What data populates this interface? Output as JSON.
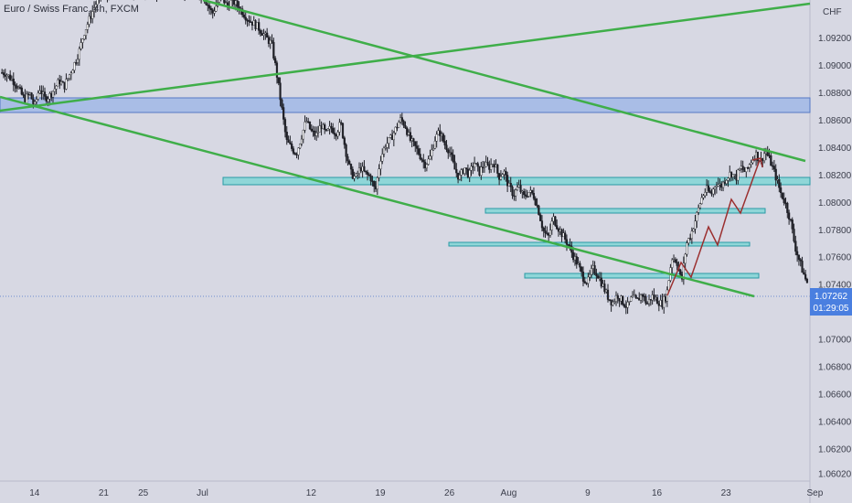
{
  "chart_data": {
    "type": "candlestick",
    "title": "Euro / Swiss Franc, 4h, FXCM",
    "currency_label": "CHF",
    "y_ticks": [
      "1.09200",
      "1.09000",
      "1.08800",
      "1.08600",
      "1.08400",
      "1.08200",
      "1.08000",
      "1.07800",
      "1.07600",
      "1.07400",
      "1.07200",
      "1.07000",
      "1.06800",
      "1.06600",
      "1.06400",
      "1.06200",
      "1.06020"
    ],
    "y_tick_values": [
      1.092,
      1.09,
      1.088,
      1.086,
      1.084,
      1.082,
      1.08,
      1.078,
      1.076,
      1.074,
      1.072,
      1.07,
      1.068,
      1.066,
      1.064,
      1.062,
      1.0602
    ],
    "x_ticks": [
      "14",
      "21",
      "25",
      "Jul",
      "12",
      "19",
      "26",
      "Aug",
      "9",
      "16",
      "23",
      "Sep"
    ],
    "x_tick_days": [
      -17,
      -10,
      -6,
      0,
      11,
      18,
      25,
      31,
      39,
      46,
      53,
      62
    ],
    "ylim": [
      1.0597,
      1.0948
    ],
    "xlim": [
      -20.5,
      61.5
    ],
    "current_price": {
      "value": 1.07262,
      "price_text": "1.07262",
      "countdown": "01:29:05"
    },
    "price_path": [
      [
        -20,
        1.0895
      ],
      [
        -19,
        1.0888
      ],
      [
        -18,
        1.0875
      ],
      [
        -17.5,
        1.088
      ],
      [
        -17,
        1.087
      ],
      [
        -16.5,
        1.0884
      ],
      [
        -16,
        1.0876
      ],
      [
        -15.5,
        1.0878
      ],
      [
        -15,
        1.0883
      ],
      [
        -14.5,
        1.0889
      ],
      [
        -14,
        1.0885
      ],
      [
        -13.5,
        1.0893
      ],
      [
        -13,
        1.0901
      ],
      [
        -12.5,
        1.091
      ],
      [
        -12,
        1.0924
      ],
      [
        -11.5,
        1.0933
      ],
      [
        -11,
        1.0942
      ],
      [
        -10.5,
        1.095
      ],
      [
        -10,
        1.0955
      ],
      [
        -9.5,
        1.095
      ],
      [
        -9,
        1.0952
      ],
      [
        -8.5,
        1.0956
      ],
      [
        -8,
        1.0953
      ],
      [
        -7.5,
        1.0957
      ],
      [
        -7,
        1.0954
      ],
      [
        -6.5,
        1.0958
      ],
      [
        -6,
        1.0955
      ],
      [
        -5.5,
        1.0958
      ],
      [
        -5,
        1.0956
      ],
      [
        -4.5,
        1.0952
      ],
      [
        -4,
        1.0956
      ],
      [
        -3.5,
        1.0958
      ],
      [
        -3,
        1.0955
      ],
      [
        -2.5,
        1.0957
      ],
      [
        -2,
        1.0954
      ],
      [
        -1.5,
        1.0956
      ],
      [
        -1,
        1.0955
      ],
      [
        0,
        1.0952
      ],
      [
        0.5,
        1.0945
      ],
      [
        1,
        1.0938
      ],
      [
        1.5,
        1.0946
      ],
      [
        2,
        1.095
      ],
      [
        2.5,
        1.0943
      ],
      [
        3,
        1.0948
      ],
      [
        3.5,
        1.0944
      ],
      [
        4,
        1.094
      ],
      [
        4.5,
        1.0935
      ],
      [
        5,
        1.0932
      ],
      [
        5.5,
        1.0929
      ],
      [
        6,
        1.0925
      ],
      [
        6.5,
        1.092
      ],
      [
        7,
        1.0916
      ],
      [
        7.5,
        1.0895
      ],
      [
        8,
        1.087
      ],
      [
        8.5,
        1.0845
      ],
      [
        9,
        1.084
      ],
      [
        9.5,
        1.0836
      ],
      [
        10,
        1.0848
      ],
      [
        10.5,
        1.086
      ],
      [
        11,
        1.0852
      ],
      [
        11.5,
        1.0849
      ],
      [
        12,
        1.0857
      ],
      [
        12.5,
        1.085
      ],
      [
        13,
        1.0855
      ],
      [
        13.5,
        1.0851
      ],
      [
        14,
        1.0858
      ],
      [
        14.5,
        1.0838
      ],
      [
        15,
        1.0822
      ],
      [
        15.5,
        1.0818
      ],
      [
        16,
        1.0826
      ],
      [
        16.5,
        1.0821
      ],
      [
        17,
        1.0819
      ],
      [
        17.5,
        1.0808
      ],
      [
        18,
        1.0832
      ],
      [
        18.5,
        1.0842
      ],
      [
        19,
        1.0846
      ],
      [
        19.5,
        1.0853
      ],
      [
        20,
        1.0861
      ],
      [
        20.5,
        1.0857
      ],
      [
        21,
        1.0846
      ],
      [
        21.5,
        1.0841
      ],
      [
        22,
        1.0835
      ],
      [
        22.5,
        1.0828
      ],
      [
        23,
        1.0832
      ],
      [
        23.5,
        1.0846
      ],
      [
        24,
        1.0852
      ],
      [
        24.5,
        1.0843
      ],
      [
        25,
        1.0838
      ],
      [
        25.5,
        1.0825
      ],
      [
        26,
        1.0818
      ],
      [
        26.5,
        1.0826
      ],
      [
        27,
        1.082
      ],
      [
        27.5,
        1.083
      ],
      [
        28,
        1.0822
      ],
      [
        28.5,
        1.0828
      ],
      [
        29,
        1.0826
      ],
      [
        29.5,
        1.083
      ],
      [
        30,
        1.0819
      ],
      [
        30.5,
        1.0823
      ],
      [
        31,
        1.0812
      ],
      [
        31.5,
        1.0806
      ],
      [
        32,
        1.0812
      ],
      [
        32.5,
        1.0804
      ],
      [
        33,
        1.0808
      ],
      [
        33.5,
        1.0806
      ],
      [
        34,
        1.0795
      ],
      [
        34.5,
        1.078
      ],
      [
        35,
        1.0774
      ],
      [
        35.5,
        1.0789
      ],
      [
        36,
        1.0782
      ],
      [
        36.5,
        1.0776
      ],
      [
        37,
        1.077
      ],
      [
        37.5,
        1.0762
      ],
      [
        38,
        1.0755
      ],
      [
        38.5,
        1.0746
      ],
      [
        39,
        1.0742
      ],
      [
        39.5,
        1.0752
      ],
      [
        40,
        1.0748
      ],
      [
        40.5,
        1.074
      ],
      [
        41,
        1.0732
      ],
      [
        41.5,
        1.0727
      ],
      [
        42,
        1.0733
      ],
      [
        42.5,
        1.0728
      ],
      [
        43,
        1.0724
      ],
      [
        43.5,
        1.0731
      ],
      [
        44,
        1.0728
      ],
      [
        44.5,
        1.0734
      ],
      [
        45,
        1.0726
      ],
      [
        45.5,
        1.0732
      ],
      [
        46,
        1.0729
      ],
      [
        46.5,
        1.0726
      ],
      [
        47,
        1.0733
      ],
      [
        47.5,
        1.076
      ],
      [
        48,
        1.0758
      ],
      [
        48.5,
        1.0742
      ],
      [
        49,
        1.077
      ],
      [
        49.5,
        1.0778
      ],
      [
        50,
        1.079
      ],
      [
        50.5,
        1.0803
      ],
      [
        51,
        1.081
      ],
      [
        51.5,
        1.0806
      ],
      [
        52,
        1.0815
      ],
      [
        52.5,
        1.0812
      ],
      [
        53,
        1.0818
      ],
      [
        53.5,
        1.0822
      ],
      [
        54,
        1.0818
      ],
      [
        54.5,
        1.0826
      ],
      [
        55,
        1.0822
      ],
      [
        55.5,
        1.083
      ],
      [
        56,
        1.0836
      ],
      [
        56.5,
        1.083
      ],
      [
        57,
        1.0838
      ],
      [
        57.5,
        1.083
      ],
      [
        58,
        1.082
      ],
      [
        58.5,
        1.0808
      ],
      [
        59,
        1.08
      ],
      [
        59.5,
        1.0788
      ],
      [
        60,
        1.0768
      ],
      [
        60.5,
        1.0756
      ],
      [
        61,
        1.0745
      ],
      [
        61.5,
        1.0738
      ]
    ]
  }
}
